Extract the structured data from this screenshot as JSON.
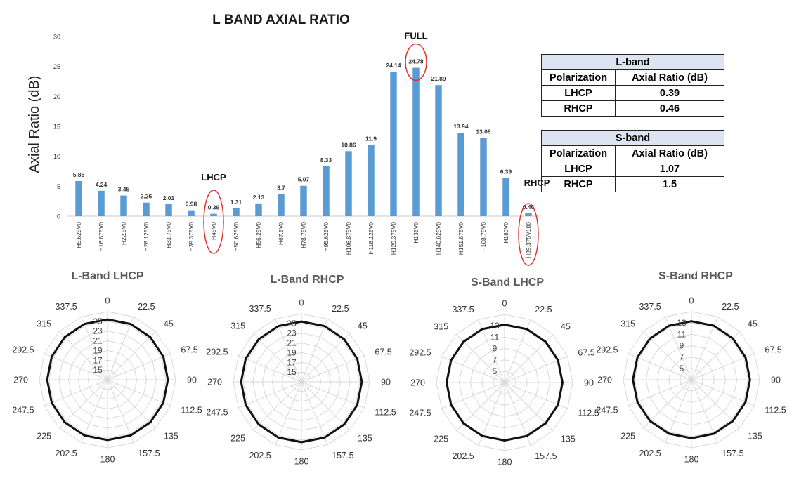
{
  "chart_data": [
    {
      "type": "bar",
      "title": "L BAND AXIAL RATIO",
      "ylabel": "Axial Ratio (dB)",
      "xlabel": "",
      "ylim": [
        0,
        30
      ],
      "yticks": [
        "0",
        "5",
        "10",
        "15",
        "20",
        "25",
        "30"
      ],
      "categories": [
        "H5.625V0",
        "H16.875V0",
        "H22.5V0",
        "H28.125V0",
        "H33.75V0",
        "H39.375V0",
        "H45V0",
        "H50.625V0",
        "H56.25V0",
        "H67.5V0",
        "H78.75V0",
        "H95.625V0",
        "H106.875V0",
        "H118.125V0",
        "H129.375V0",
        "H135V0",
        "H140.625V0",
        "H151.875V0",
        "H168.75V0",
        "H180V0",
        "H39.375V180"
      ],
      "values": [
        5.86,
        4.24,
        3.45,
        2.26,
        2.01,
        0.98,
        0.39,
        1.31,
        2.13,
        3.7,
        5.07,
        8.33,
        10.86,
        11.9,
        24.14,
        24.78,
        21.89,
        13.94,
        13.06,
        6.39,
        0.46
      ],
      "value_labels": [
        "5.86",
        "4.24",
        "3.45",
        "2.26",
        "2.01",
        "0.98",
        "0.39",
        "1.31",
        "2.13",
        "3.7",
        "5.07",
        "8.33",
        "10.86",
        "11.9",
        "24.14",
        "24.78",
        "21.89",
        "13.94",
        "13.06",
        "6.39",
        "0.46"
      ],
      "bar_color": "#5b9bd5",
      "annotations": [
        {
          "text": "LHCP",
          "category": "H45V0"
        },
        {
          "text": "FULL",
          "category": "H135V0"
        },
        {
          "text": "RHCP",
          "category": "H39.375V180"
        }
      ],
      "highlight_color": "#e03030",
      "grid": false
    },
    {
      "type": "radar",
      "title": "L-Band LHCP",
      "angles": [
        "0",
        "22.5",
        "45",
        "67.5",
        "90",
        "112.5",
        "135",
        "157.5",
        "180",
        "202.5",
        "225",
        "247.5",
        "270",
        "292.5",
        "315",
        "337.5"
      ],
      "r_ticks": [
        "15",
        "17",
        "19",
        "21",
        "23",
        "25"
      ],
      "rlim": [
        13,
        27
      ],
      "values": [
        25.4,
        25.4,
        25.4,
        25.4,
        25.4,
        25.4,
        25.4,
        25.4,
        25.4,
        25.4,
        25.4,
        25.4,
        25.4,
        25.4,
        25.4,
        25.4
      ]
    },
    {
      "type": "radar",
      "title": "L-Band RHCP",
      "angles": [
        "0",
        "22.5",
        "45",
        "67.5",
        "90",
        "112.5",
        "135",
        "157.5",
        "180",
        "202.5",
        "225",
        "247.5",
        "270",
        "292.5",
        "315",
        "337.5"
      ],
      "r_ticks": [
        "15",
        "17",
        "19",
        "21",
        "23",
        "25"
      ],
      "rlim": [
        13,
        27
      ],
      "values": [
        25.4,
        25.4,
        25.4,
        25.4,
        25.4,
        25.4,
        25.4,
        25.4,
        25.4,
        25.4,
        25.4,
        25.4,
        25.4,
        25.4,
        25.4,
        25.4
      ]
    },
    {
      "type": "radar",
      "title": "S-Band LHCP",
      "angles": [
        "0",
        "22.5",
        "45",
        "67.5",
        "90",
        "112.5",
        "135",
        "157.5",
        "180",
        "202.5",
        "225",
        "247.5",
        "270",
        "292.5",
        "315",
        "337.5"
      ],
      "r_ticks": [
        "5",
        "7",
        "9",
        "11",
        "13"
      ],
      "rlim": [
        3,
        15
      ],
      "values": [
        13.2,
        13.2,
        13.2,
        13.2,
        13.2,
        13.2,
        13.2,
        13.2,
        13.2,
        13.2,
        13.2,
        13.2,
        13.2,
        13.2,
        13.2,
        13.2
      ]
    },
    {
      "type": "radar",
      "title": "S-Band RHCP",
      "angles": [
        "0",
        "22.5",
        "45",
        "67.5",
        "90",
        "112.5",
        "135",
        "157.5",
        "180",
        "202.5",
        "225",
        "247.5",
        "270",
        "292.5",
        "315",
        "337.5"
      ],
      "r_ticks": [
        "5",
        "7",
        "9",
        "11",
        "13"
      ],
      "rlim": [
        3,
        15
      ],
      "values": [
        13.3,
        13.3,
        13.3,
        13.3,
        13.3,
        13.3,
        13.3,
        13.3,
        13.3,
        13.3,
        13.3,
        13.3,
        13.3,
        13.3,
        13.3,
        13.3
      ]
    }
  ],
  "tables": [
    {
      "title": "L-band",
      "headers": [
        "Polarization",
        "Axial Ratio (dB)"
      ],
      "rows": [
        [
          "LHCP",
          "0.39"
        ],
        [
          "RHCP",
          "0.46"
        ]
      ]
    },
    {
      "title": "S-band",
      "headers": [
        "Polarization",
        "Axial Ratio (dB)"
      ],
      "rows": [
        [
          "LHCP",
          "1.07"
        ],
        [
          "RHCP",
          "1.5"
        ]
      ]
    }
  ]
}
